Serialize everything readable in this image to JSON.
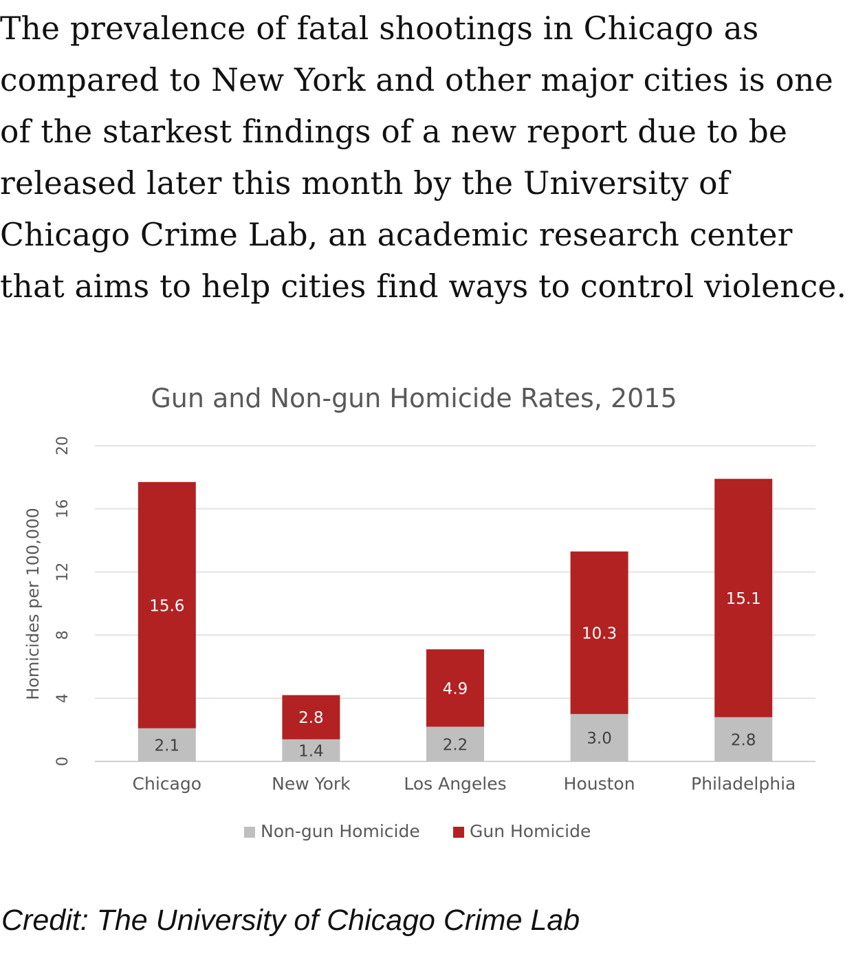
{
  "article": {
    "paragraph": "The prevalence of fatal shootings in Chicago as compared to New York and other major cities is one of the starkest findings of a new report due to be released later this month by the University of Chicago Crime Lab, an academic research center that aims to help cities find ways to control violence."
  },
  "chart_data": {
    "type": "bar",
    "stacked": true,
    "title": "Gun and Non-gun Homicide Rates, 2015",
    "xlabel": "",
    "ylabel": "Homicides per 100,000",
    "ylim": [
      0,
      20
    ],
    "yticks": [
      0,
      4,
      8,
      12,
      16,
      20
    ],
    "grid": true,
    "legend_position": "bottom",
    "categories": [
      "Chicago",
      "New York",
      "Los Angeles",
      "Houston",
      "Philadelphia"
    ],
    "series": [
      {
        "name": "Non-gun Homicide",
        "color": "#bfbfbf",
        "values": [
          2.1,
          1.4,
          2.2,
          3.0,
          2.8
        ],
        "labels": [
          "2.1",
          "1.4",
          "2.2",
          "3.0",
          "2.8"
        ]
      },
      {
        "name": "Gun Homicide",
        "color": "#b22222",
        "values": [
          15.6,
          2.8,
          4.9,
          10.3,
          15.1
        ],
        "labels": [
          "15.6",
          "2.8",
          "4.9",
          "10.3",
          "15.1"
        ]
      }
    ]
  },
  "credit": {
    "text": "Credit: The University of Chicago Crime Lab"
  }
}
